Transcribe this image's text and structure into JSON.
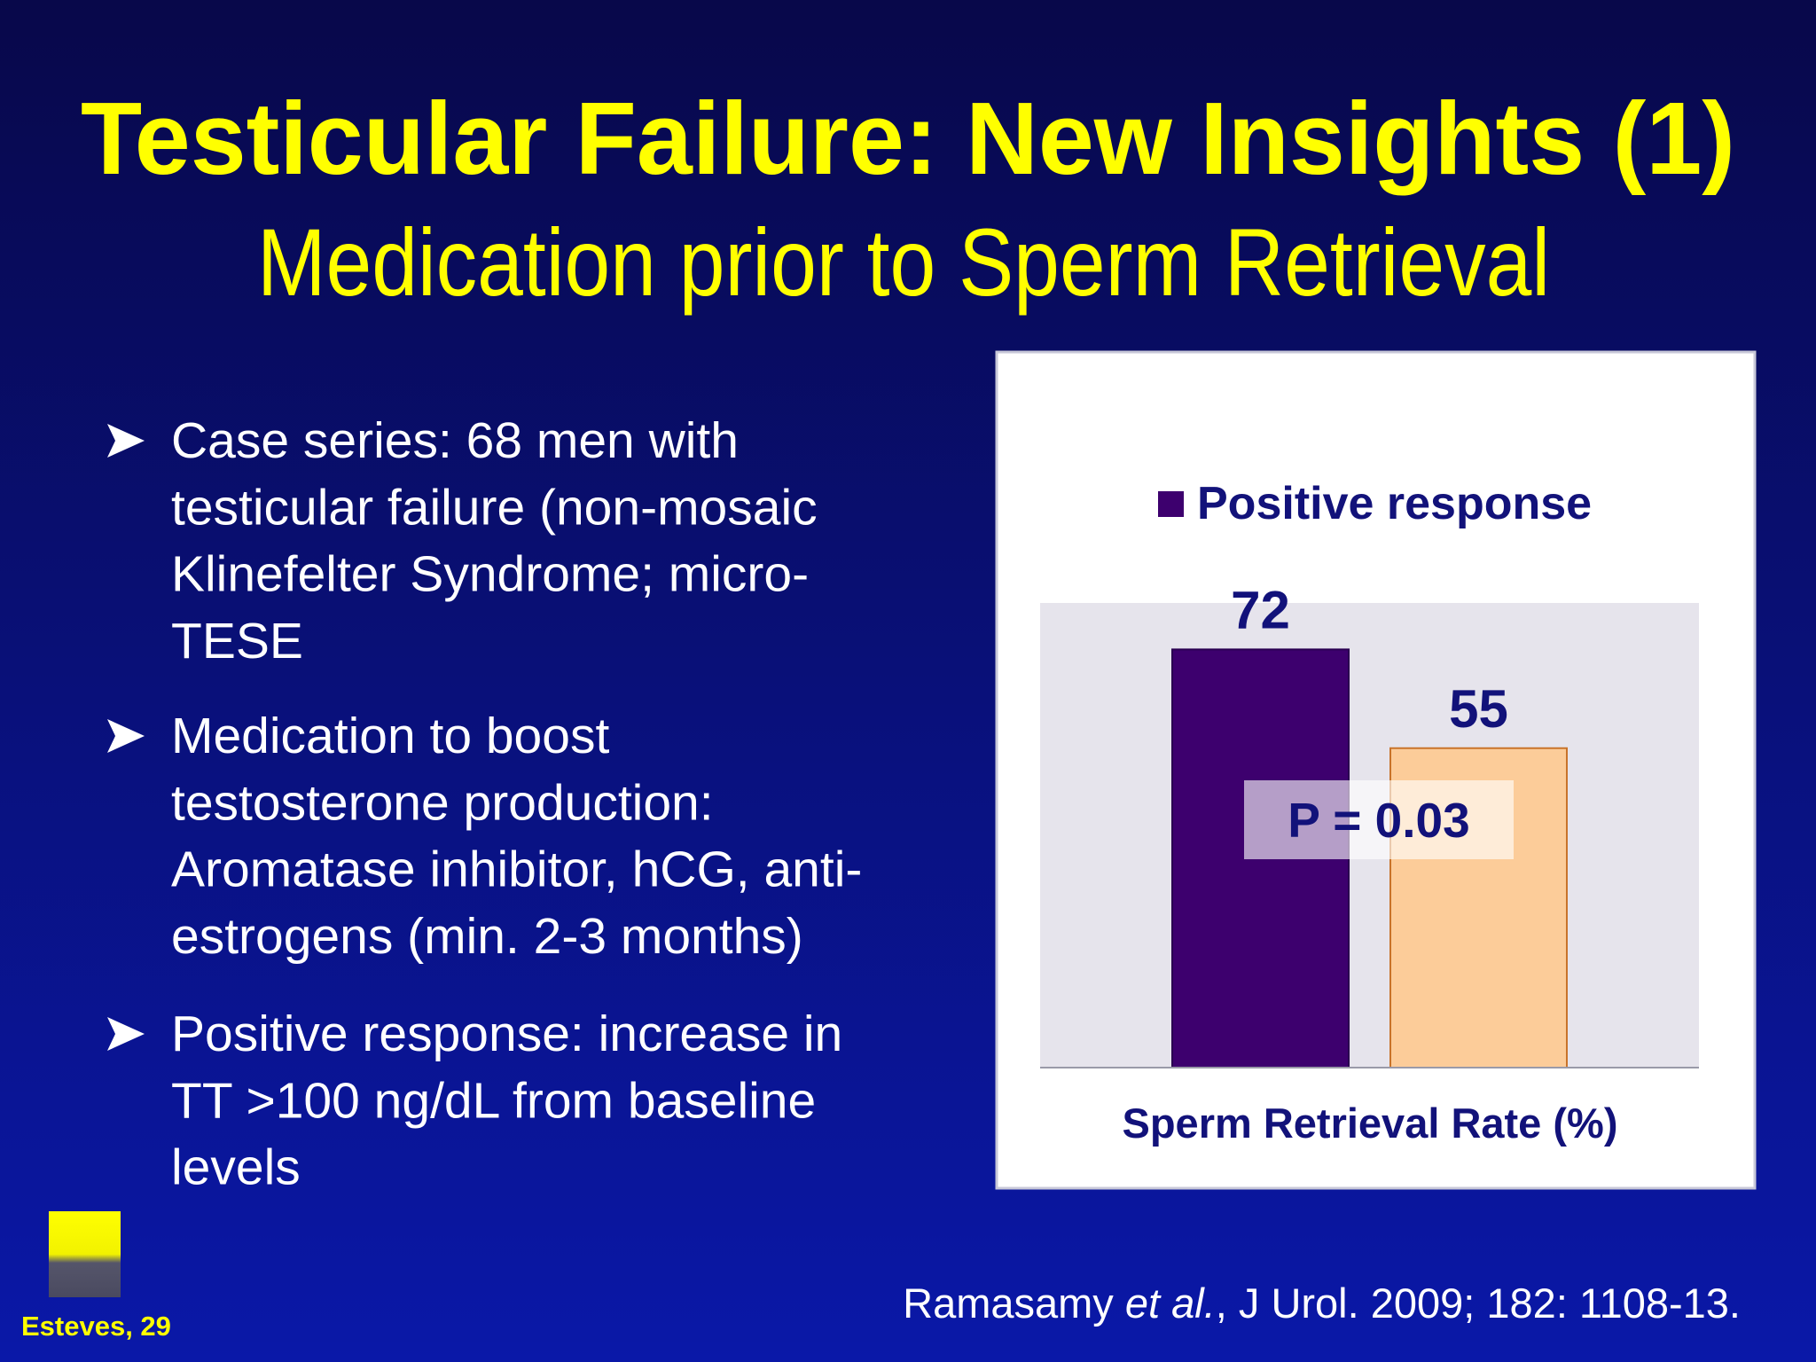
{
  "header": {
    "title": "Testicular Failure: New Insights (1)",
    "subtitle": "Medication prior to Sperm Retrieval"
  },
  "bullets": [
    [
      "Case series: 68 men with",
      "testicular failure (non-mosaic",
      "Klinefelter Syndrome; micro-",
      "TESE"
    ],
    [
      "Medication to boost",
      "testosterone production:",
      "Aromatase inhibitor, hCG, anti-",
      "estrogens (min. 2-3 months)"
    ],
    [
      "Positive response: increase in",
      "TT >100 ng/dL from baseline",
      "levels"
    ]
  ],
  "chart_data": {
    "type": "bar",
    "x_label": "Sperm Retrieval Rate (%)",
    "annotation": "P = 0.03",
    "series": [
      {
        "name": "Positive response",
        "color": "#3d006e",
        "values": [
          72
        ]
      },
      {
        "color": "#fccc99",
        "values": [
          55
        ]
      }
    ],
    "ylim": [
      0,
      80
    ]
  },
  "footer": {
    "author": "Esteves, 29",
    "citation": [
      "Ramasamy ",
      "et al.",
      ", J Urol. 2009; 182: 1108-13."
    ]
  }
}
